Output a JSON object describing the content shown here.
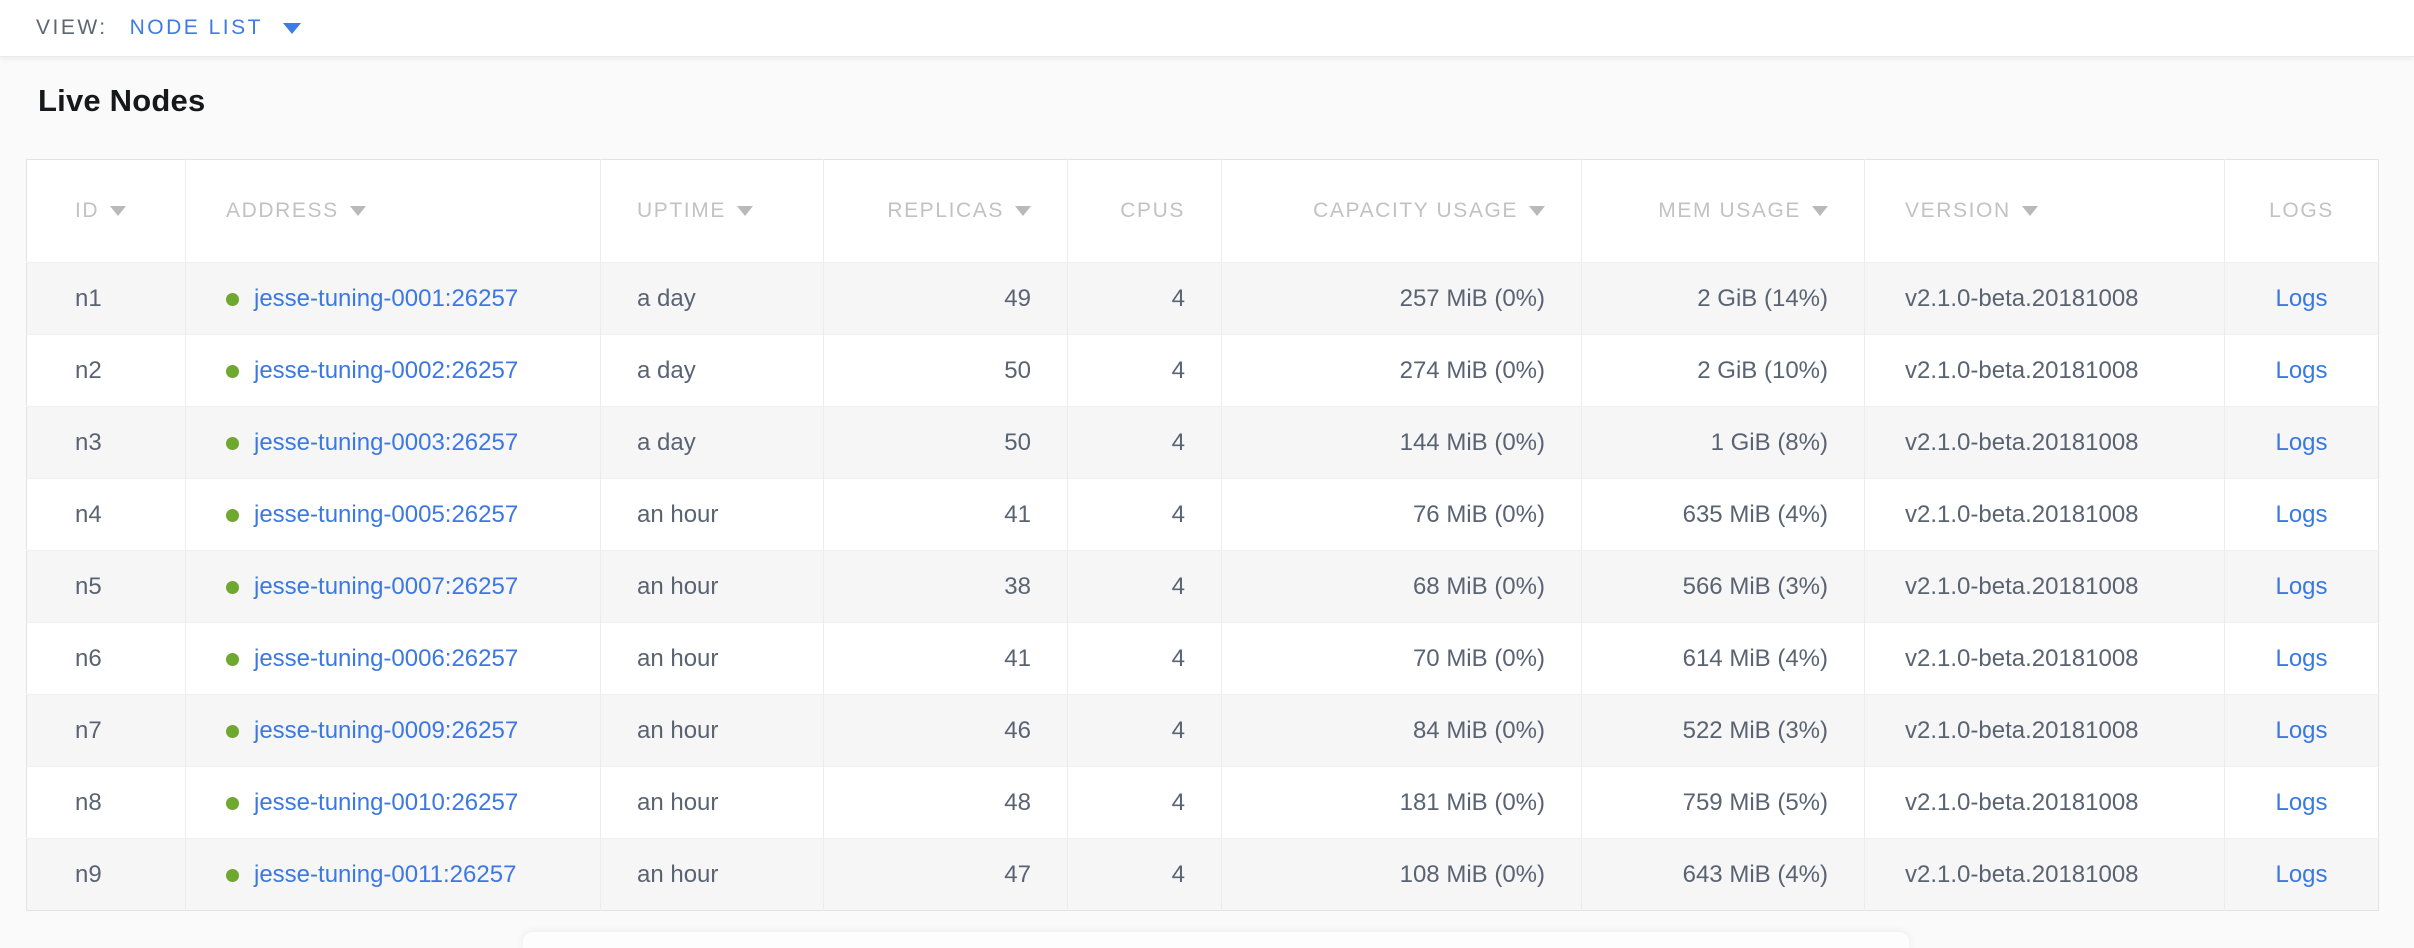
{
  "view_bar": {
    "label": "VIEW:",
    "selected": "NODE LIST"
  },
  "page": {
    "title": "Live Nodes"
  },
  "table": {
    "columns": [
      {
        "key": "id",
        "label": "ID",
        "sortable": true,
        "align": "left"
      },
      {
        "key": "address",
        "label": "ADDRESS",
        "sortable": true,
        "align": "left"
      },
      {
        "key": "uptime",
        "label": "UPTIME",
        "sortable": true,
        "align": "left"
      },
      {
        "key": "replicas",
        "label": "REPLICAS",
        "sortable": true,
        "align": "right"
      },
      {
        "key": "cpus",
        "label": "CPUS",
        "sortable": false,
        "align": "right"
      },
      {
        "key": "capacity",
        "label": "CAPACITY USAGE",
        "sortable": true,
        "align": "right"
      },
      {
        "key": "mem",
        "label": "MEM USAGE",
        "sortable": true,
        "align": "right"
      },
      {
        "key": "version",
        "label": "VERSION",
        "sortable": true,
        "align": "left"
      },
      {
        "key": "logs",
        "label": "LOGS",
        "sortable": false,
        "align": "center"
      }
    ],
    "rows": [
      {
        "id": "n1",
        "address": "jesse-tuning-0001:26257",
        "uptime": "a day",
        "replicas": "49",
        "cpus": "4",
        "capacity": "257 MiB (0%)",
        "mem": "2 GiB (14%)",
        "version": "v2.1.0-beta.20181008",
        "logs": "Logs"
      },
      {
        "id": "n2",
        "address": "jesse-tuning-0002:26257",
        "uptime": "a day",
        "replicas": "50",
        "cpus": "4",
        "capacity": "274 MiB (0%)",
        "mem": "2 GiB (10%)",
        "version": "v2.1.0-beta.20181008",
        "logs": "Logs"
      },
      {
        "id": "n3",
        "address": "jesse-tuning-0003:26257",
        "uptime": "a day",
        "replicas": "50",
        "cpus": "4",
        "capacity": "144 MiB (0%)",
        "mem": "1 GiB (8%)",
        "version": "v2.1.0-beta.20181008",
        "logs": "Logs"
      },
      {
        "id": "n4",
        "address": "jesse-tuning-0005:26257",
        "uptime": "an hour",
        "replicas": "41",
        "cpus": "4",
        "capacity": "76 MiB (0%)",
        "mem": "635 MiB (4%)",
        "version": "v2.1.0-beta.20181008",
        "logs": "Logs"
      },
      {
        "id": "n5",
        "address": "jesse-tuning-0007:26257",
        "uptime": "an hour",
        "replicas": "38",
        "cpus": "4",
        "capacity": "68 MiB (0%)",
        "mem": "566 MiB (3%)",
        "version": "v2.1.0-beta.20181008",
        "logs": "Logs"
      },
      {
        "id": "n6",
        "address": "jesse-tuning-0006:26257",
        "uptime": "an hour",
        "replicas": "41",
        "cpus": "4",
        "capacity": "70 MiB (0%)",
        "mem": "614 MiB (4%)",
        "version": "v2.1.0-beta.20181008",
        "logs": "Logs"
      },
      {
        "id": "n7",
        "address": "jesse-tuning-0009:26257",
        "uptime": "an hour",
        "replicas": "46",
        "cpus": "4",
        "capacity": "84 MiB (0%)",
        "mem": "522 MiB (3%)",
        "version": "v2.1.0-beta.20181008",
        "logs": "Logs"
      },
      {
        "id": "n8",
        "address": "jesse-tuning-0010:26257",
        "uptime": "an hour",
        "replicas": "48",
        "cpus": "4",
        "capacity": "181 MiB (0%)",
        "mem": "759 MiB (5%)",
        "version": "v2.1.0-beta.20181008",
        "logs": "Logs"
      },
      {
        "id": "n9",
        "address": "jesse-tuning-0011:26257",
        "uptime": "an hour",
        "replicas": "47",
        "cpus": "4",
        "capacity": "108 MiB (0%)",
        "mem": "643 MiB (4%)",
        "version": "v2.1.0-beta.20181008",
        "logs": "Logs"
      }
    ]
  },
  "icons": {
    "sort": "sort-arrow-down-icon",
    "dropdown": "chevron-down-icon",
    "node_status": "live-dot-icon"
  },
  "colors": {
    "link_blue": "#3c78e2",
    "accent_blue": "#3d7be8",
    "live_green": "#6fa82f",
    "header_gray": "#c2c2c2",
    "cell_text": "#5a6372",
    "row_stripe": "#f6f6f7"
  }
}
